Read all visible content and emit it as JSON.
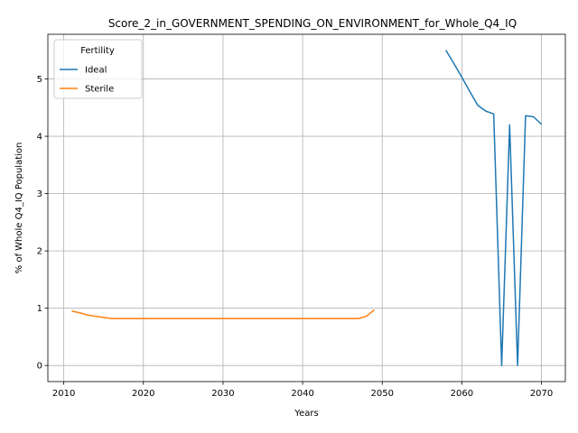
{
  "chart_data": {
    "type": "line",
    "title": "Score_2_in_GOVERNMENT_SPENDING_ON_ENVIRONMENT_for_Whole_Q4_IQ",
    "xlabel": "Years",
    "ylabel": "% of Whole Q4_IQ Population",
    "xlim": [
      2008,
      2073
    ],
    "ylim": [
      -0.28,
      5.78
    ],
    "xticks": [
      2010,
      2020,
      2030,
      2040,
      2050,
      2060,
      2070
    ],
    "yticks": [
      0,
      1,
      2,
      3,
      4,
      5
    ],
    "grid": true,
    "legend": {
      "title": "Fertility",
      "placement": "top-left"
    },
    "series": [
      {
        "name": "Ideal",
        "color": "#1f77b4",
        "x": [
          2058,
          2059,
          2060,
          2061,
          2062,
          2063,
          2064,
          2065,
          2066,
          2067,
          2068,
          2069,
          2070
        ],
        "values": [
          5.5,
          5.27,
          5.03,
          4.78,
          4.54,
          4.44,
          4.39,
          0.0,
          4.2,
          0.0,
          4.36,
          4.34,
          4.21
        ]
      },
      {
        "name": "Sterile",
        "color": "#ff7f0e",
        "x": [
          2011,
          2012,
          2013,
          2014,
          2015,
          2016,
          2017,
          2018,
          2019,
          2020,
          2021,
          2022,
          2023,
          2024,
          2025,
          2026,
          2027,
          2028,
          2029,
          2030,
          2031,
          2032,
          2033,
          2034,
          2035,
          2036,
          2037,
          2038,
          2039,
          2040,
          2041,
          2042,
          2043,
          2044,
          2045,
          2046,
          2047,
          2048,
          2049
        ],
        "values": [
          0.95,
          0.92,
          0.88,
          0.86,
          0.84,
          0.82,
          0.82,
          0.82,
          0.82,
          0.82,
          0.82,
          0.82,
          0.82,
          0.82,
          0.82,
          0.82,
          0.82,
          0.82,
          0.82,
          0.82,
          0.82,
          0.82,
          0.82,
          0.82,
          0.82,
          0.82,
          0.82,
          0.82,
          0.82,
          0.82,
          0.82,
          0.82,
          0.82,
          0.82,
          0.82,
          0.82,
          0.82,
          0.86,
          0.97
        ]
      }
    ]
  }
}
